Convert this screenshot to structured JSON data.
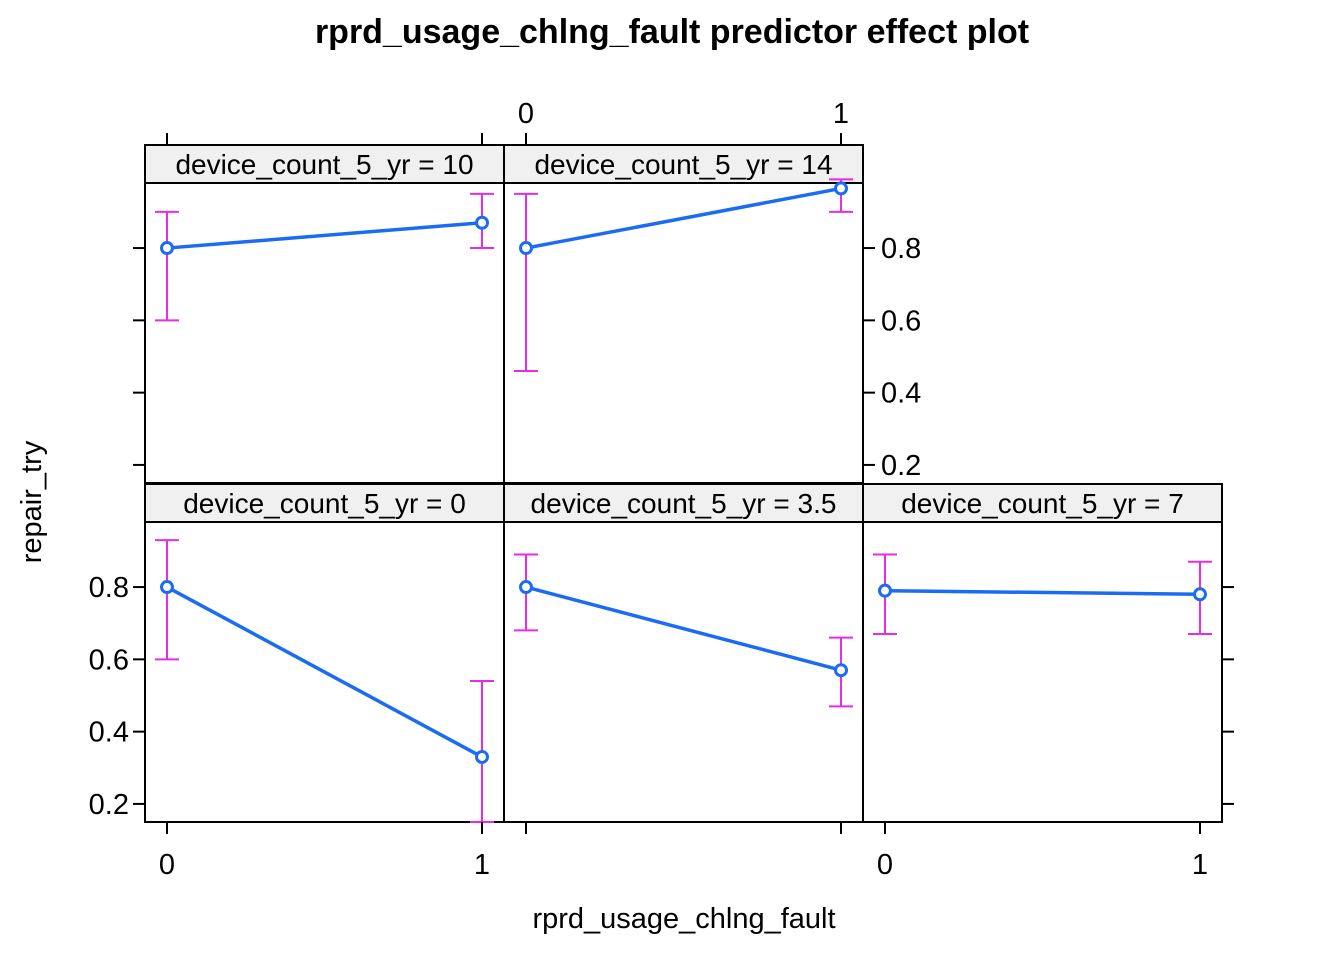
{
  "chart_data": {
    "type": "line",
    "title": "rprd_usage_chlng_fault predictor effect plot",
    "xlabel": "rprd_usage_chlng_fault",
    "ylabel": "repair_try",
    "x_ticks": [
      {
        "value": 0,
        "label": "0"
      },
      {
        "value": 1,
        "label": "1"
      }
    ],
    "y_ticks": [
      {
        "value": 0.2,
        "label": "0.2"
      },
      {
        "value": 0.4,
        "label": "0.4"
      },
      {
        "value": 0.6,
        "label": "0.6"
      },
      {
        "value": 0.8,
        "label": "0.8"
      }
    ],
    "ylim": [
      0.15,
      0.98
    ],
    "x": [
      0,
      1
    ],
    "colors": {
      "line": "#1b6cf2",
      "ci": "#e82be8",
      "strip": "#f0f0f0",
      "frame": "#000000"
    },
    "panels": [
      {
        "strip": "device_count_5_yr = 0",
        "x": [
          0,
          1
        ],
        "fit": [
          0.8,
          0.33
        ],
        "lower": [
          0.6,
          0.15
        ],
        "upper": [
          0.93,
          0.54
        ]
      },
      {
        "strip": "device_count_5_yr = 3.5",
        "x": [
          0,
          1
        ],
        "fit": [
          0.8,
          0.57
        ],
        "lower": [
          0.68,
          0.47
        ],
        "upper": [
          0.89,
          0.66
        ]
      },
      {
        "strip": "device_count_5_yr = 7",
        "x": [
          0,
          1
        ],
        "fit": [
          0.79,
          0.78
        ],
        "lower": [
          0.67,
          0.67
        ],
        "upper": [
          0.89,
          0.87
        ]
      },
      {
        "strip": "device_count_5_yr = 10",
        "x": [
          0,
          1
        ],
        "fit": [
          0.8,
          0.87
        ],
        "lower": [
          0.6,
          0.8
        ],
        "upper": [
          0.9,
          0.95
        ]
      },
      {
        "strip": "device_count_5_yr = 14",
        "x": [
          0,
          1
        ],
        "fit": [
          0.8,
          0.965
        ],
        "lower": [
          0.46,
          0.9
        ],
        "upper": [
          0.95,
          0.99
        ]
      }
    ]
  }
}
